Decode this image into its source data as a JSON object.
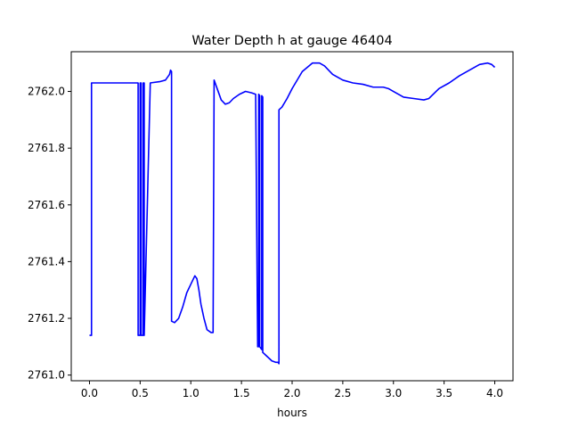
{
  "chart_data": {
    "type": "line",
    "title": "Water Depth h at gauge 46404",
    "xlabel": "hours",
    "ylabel": "",
    "xlim": [
      -0.18,
      4.18
    ],
    "ylim": [
      2760.98,
      2762.14
    ],
    "xticks": [
      0.0,
      0.5,
      1.0,
      1.5,
      2.0,
      2.5,
      3.0,
      3.5,
      4.0
    ],
    "xtick_labels": [
      "0.0",
      "0.5",
      "1.0",
      "1.5",
      "2.0",
      "2.5",
      "3.0",
      "3.5",
      "4.0"
    ],
    "yticks": [
      2761.0,
      2761.2,
      2761.4,
      2761.6,
      2761.8,
      2762.0
    ],
    "ytick_labels": [
      "2761.0",
      "2761.2",
      "2761.4",
      "2761.6",
      "2761.8",
      "2762.0"
    ],
    "grid": false,
    "series": [
      {
        "color": "#0000ff",
        "x": [
          0.0,
          0.02,
          0.02,
          0.48,
          0.48,
          0.5,
          0.5,
          0.51,
          0.51,
          0.53,
          0.53,
          0.54,
          0.54,
          0.6,
          0.7,
          0.75,
          0.79,
          0.8,
          0.81,
          0.81,
          0.84,
          0.88,
          0.92,
          0.96,
          1.0,
          1.04,
          1.06,
          1.08,
          1.1,
          1.13,
          1.16,
          1.2,
          1.22,
          1.23,
          1.23,
          1.25,
          1.3,
          1.34,
          1.38,
          1.42,
          1.48,
          1.54,
          1.6,
          1.64,
          1.66,
          1.67,
          1.67,
          1.68,
          1.68,
          1.7,
          1.7,
          1.71,
          1.71,
          1.74,
          1.8,
          1.84,
          1.86,
          1.87,
          1.87,
          1.9,
          1.95,
          2.0,
          2.1,
          2.2,
          2.27,
          2.32,
          2.4,
          2.5,
          2.6,
          2.7,
          2.8,
          2.9,
          2.95,
          3.0,
          3.1,
          3.2,
          3.3,
          3.35,
          3.45,
          3.55,
          3.65,
          3.75,
          3.85,
          3.93,
          3.97,
          4.0
        ],
        "y": [
          2761.14,
          2761.14,
          2762.03,
          2762.03,
          2761.14,
          2761.14,
          2762.03,
          2762.03,
          2761.14,
          2761.14,
          2762.03,
          2762.03,
          2761.14,
          2762.03,
          2762.035,
          2762.04,
          2762.06,
          2762.075,
          2762.07,
          2761.19,
          2761.185,
          2761.2,
          2761.24,
          2761.29,
          2761.32,
          2761.35,
          2761.34,
          2761.3,
          2761.25,
          2761.2,
          2761.16,
          2761.15,
          2761.15,
          2762.04,
          2762.04,
          2762.02,
          2761.97,
          2761.955,
          2761.96,
          2761.975,
          2761.99,
          2762.0,
          2761.995,
          2761.99,
          2761.1,
          2761.1,
          2761.99,
          2761.985,
          2761.1,
          2761.09,
          2761.985,
          2761.98,
          2761.08,
          2761.07,
          2761.05,
          2761.045,
          2761.045,
          2761.04,
          2761.935,
          2761.945,
          2761.975,
          2762.01,
          2762.07,
          2762.1,
          2762.1,
          2762.09,
          2762.06,
          2762.04,
          2762.03,
          2762.025,
          2762.015,
          2762.015,
          2762.01,
          2762.0,
          2761.98,
          2761.975,
          2761.97,
          2761.975,
          2762.01,
          2762.03,
          2762.055,
          2762.075,
          2762.095,
          2762.1,
          2762.095,
          2762.085
        ]
      }
    ]
  }
}
